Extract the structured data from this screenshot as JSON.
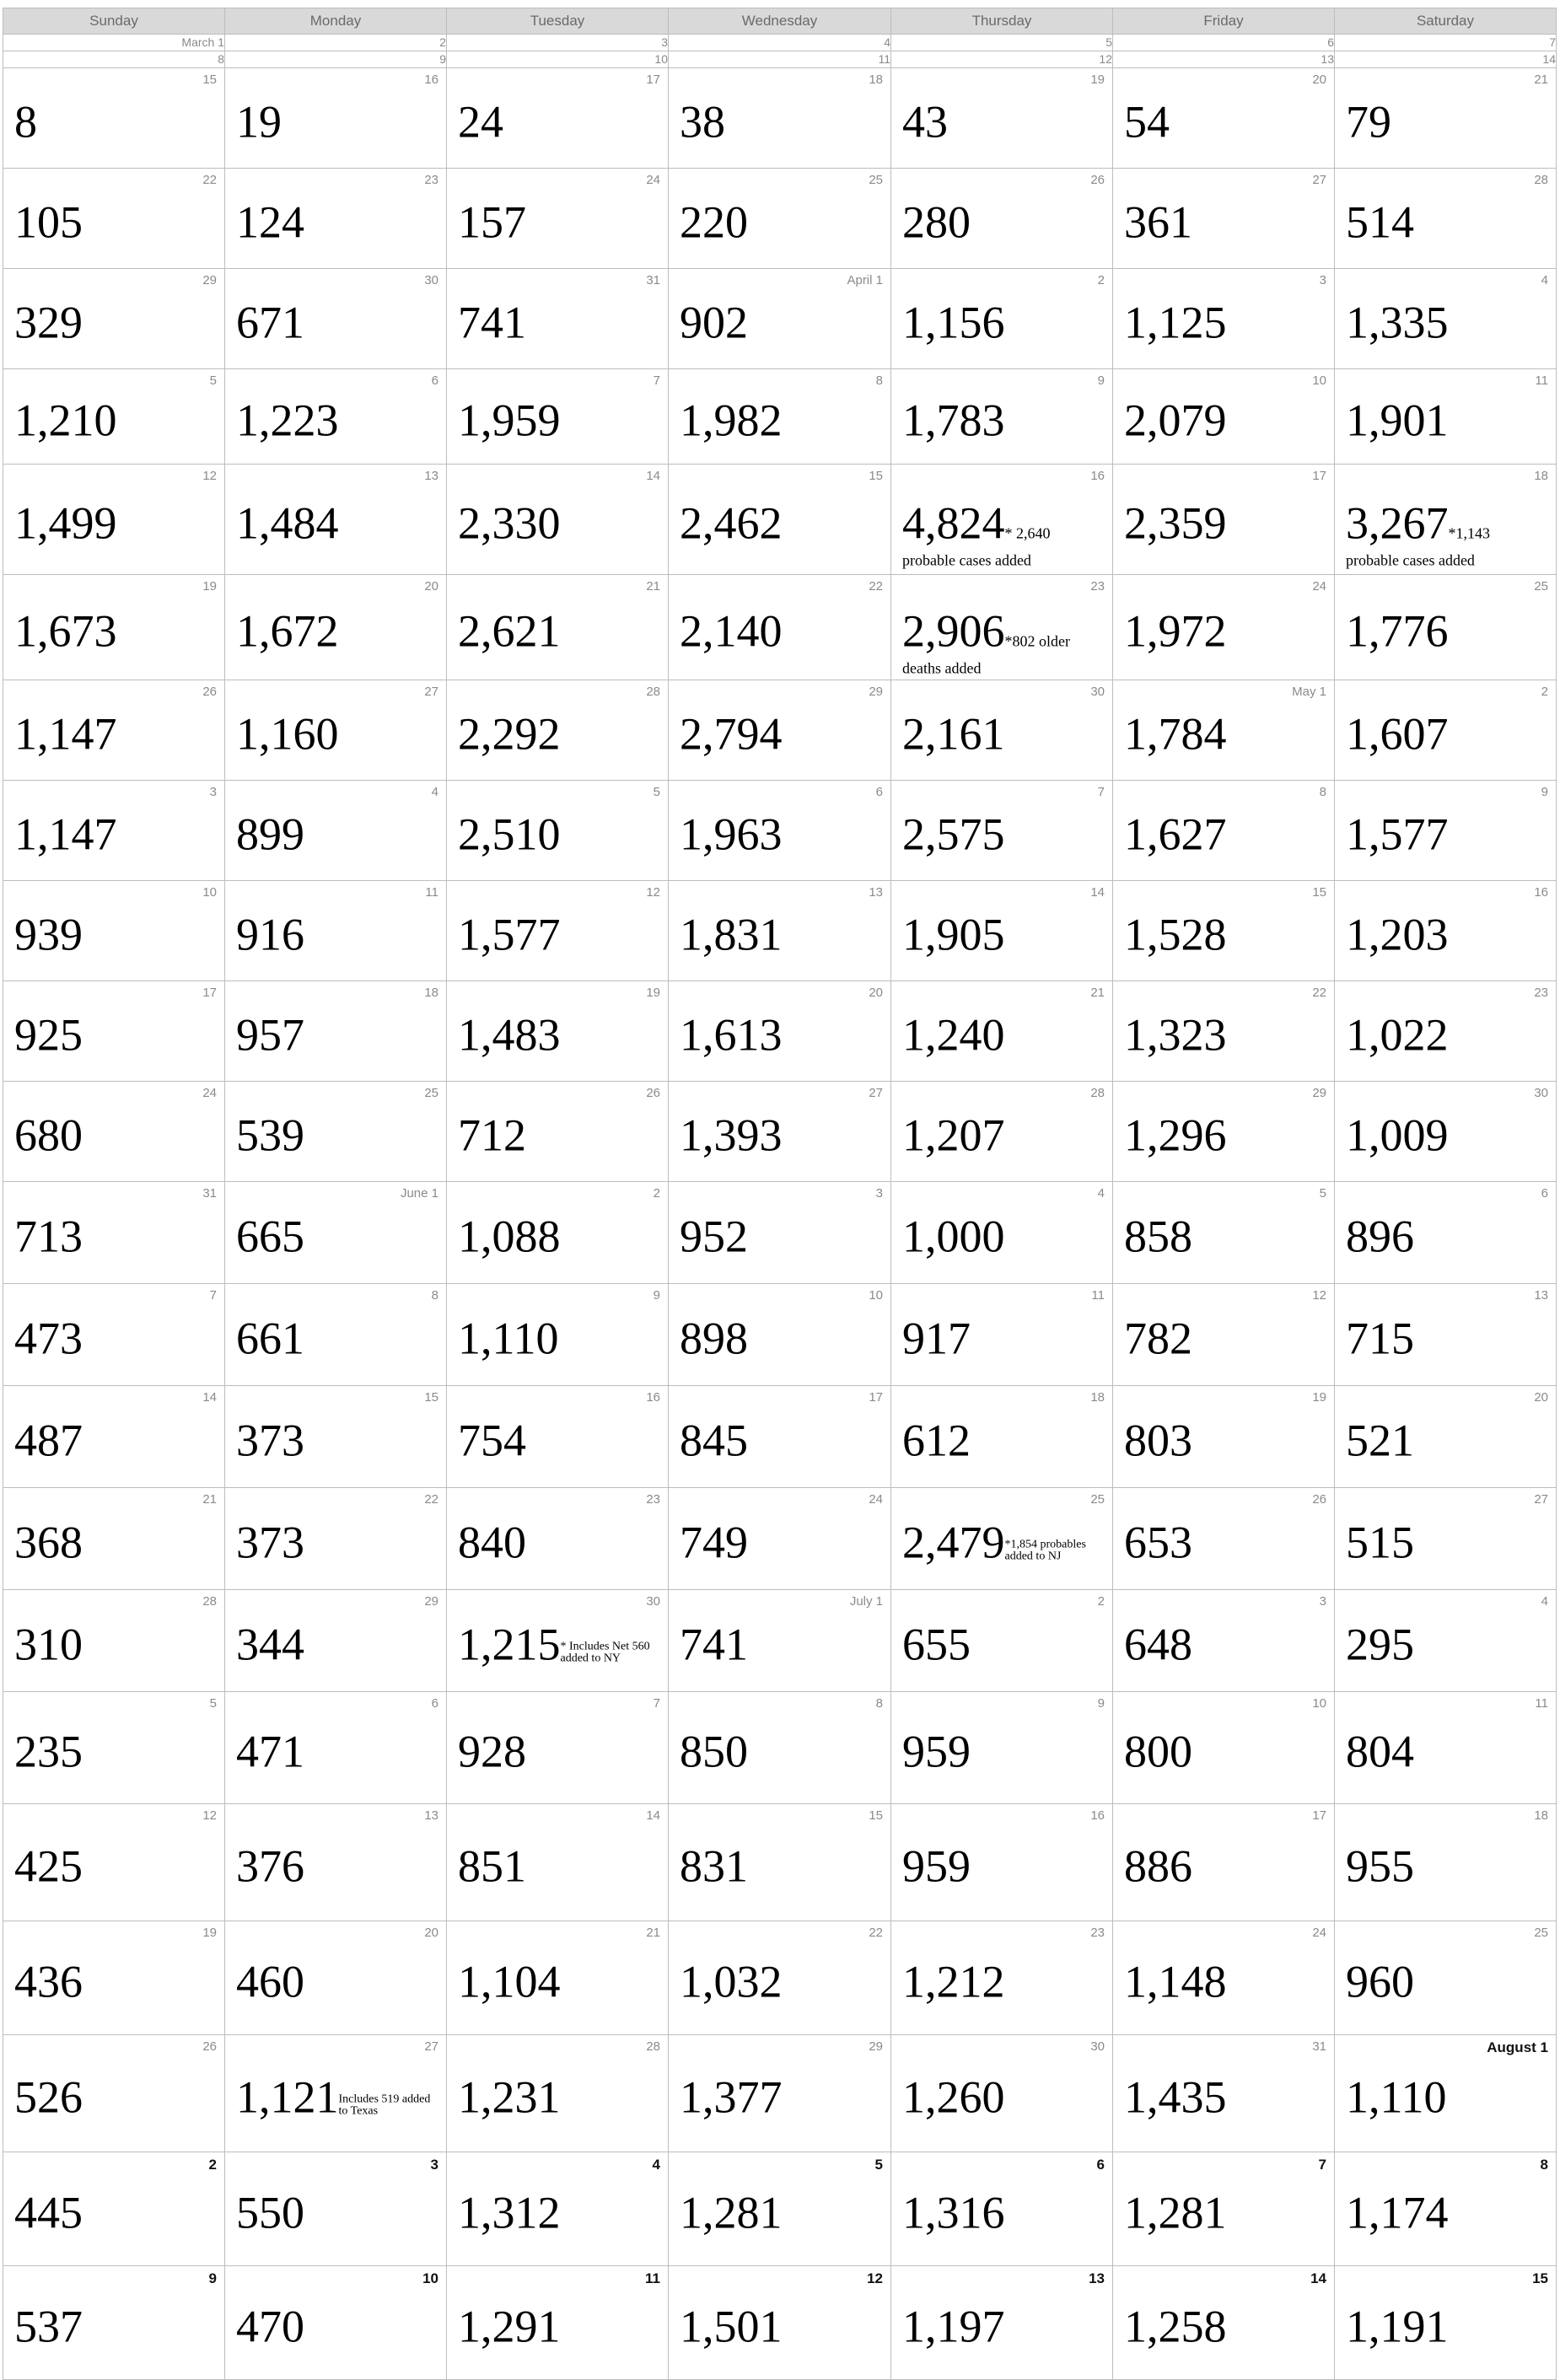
{
  "header": {
    "days": [
      "Sunday",
      "Monday",
      "Tuesday",
      "Wednesday",
      "Thursday",
      "Friday",
      "Saturday"
    ]
  },
  "mini_rows": [
    [
      "March 1",
      "2",
      "3",
      "4",
      "5",
      "6",
      "7"
    ],
    [
      "8",
      "9",
      "10",
      "11",
      "12",
      "13",
      "14"
    ]
  ],
  "weeks": [
    {
      "h": 118,
      "cells": [
        {
          "d": "15",
          "v": "8"
        },
        {
          "d": "16",
          "v": "19"
        },
        {
          "d": "17",
          "v": "24"
        },
        {
          "d": "18",
          "v": "38"
        },
        {
          "d": "19",
          "v": "43"
        },
        {
          "d": "20",
          "v": "54"
        },
        {
          "d": "21",
          "v": "79"
        }
      ]
    },
    {
      "h": 118,
      "cells": [
        {
          "d": "22",
          "v": "105"
        },
        {
          "d": "23",
          "v": "124"
        },
        {
          "d": "24",
          "v": "157"
        },
        {
          "d": "25",
          "v": "220"
        },
        {
          "d": "26",
          "v": "280"
        },
        {
          "d": "27",
          "v": "361"
        },
        {
          "d": "28",
          "v": "514"
        }
      ]
    },
    {
      "h": 118,
      "cells": [
        {
          "d": "29",
          "v": "329"
        },
        {
          "d": "30",
          "v": "671"
        },
        {
          "d": "31",
          "v": "741"
        },
        {
          "d": "April 1",
          "v": "902"
        },
        {
          "d": "2",
          "v": "1,156"
        },
        {
          "d": "3",
          "v": "1,125"
        },
        {
          "d": "4",
          "v": "1,335"
        }
      ]
    },
    {
      "h": 112,
      "cells": [
        {
          "d": "5",
          "v": "1,210"
        },
        {
          "d": "6",
          "v": "1,223"
        },
        {
          "d": "7",
          "v": "1,959"
        },
        {
          "d": "8",
          "v": "1,982"
        },
        {
          "d": "9",
          "v": "1,783"
        },
        {
          "d": "10",
          "v": "2,079"
        },
        {
          "d": "11",
          "v": "1,901"
        }
      ]
    },
    {
      "h": 130,
      "cells": [
        {
          "d": "12",
          "v": "1,499"
        },
        {
          "d": "13",
          "v": "1,484"
        },
        {
          "d": "14",
          "v": "2,330"
        },
        {
          "d": "15",
          "v": "2,462"
        },
        {
          "d": "16",
          "v": "4,824",
          "n": "* 2,640",
          "nb": "probable cases added"
        },
        {
          "d": "17",
          "v": "2,359"
        },
        {
          "d": "18",
          "v": "3,267",
          "n": "*1,143",
          "nb": "probable cases added"
        }
      ]
    },
    {
      "h": 124,
      "cells": [
        {
          "d": "19",
          "v": "1,673"
        },
        {
          "d": "20",
          "v": "1,672"
        },
        {
          "d": "21",
          "v": "2,621"
        },
        {
          "d": "22",
          "v": "2,140"
        },
        {
          "d": "23",
          "v": "2,906",
          "n": "*802 older",
          "nb": "deaths added"
        },
        {
          "d": "24",
          "v": "1,972"
        },
        {
          "d": "25",
          "v": "1,776"
        }
      ]
    },
    {
      "h": 118,
      "cells": [
        {
          "d": "26",
          "v": "1,147"
        },
        {
          "d": "27",
          "v": "1,160"
        },
        {
          "d": "28",
          "v": "2,292"
        },
        {
          "d": "29",
          "v": "2,794"
        },
        {
          "d": "30",
          "v": "2,161"
        },
        {
          "d": "May 1",
          "v": "1,784"
        },
        {
          "d": "2",
          "v": "1,607"
        }
      ]
    },
    {
      "h": 118,
      "cells": [
        {
          "d": "3",
          "v": "1,147"
        },
        {
          "d": "4",
          "v": "899"
        },
        {
          "d": "5",
          "v": "2,510"
        },
        {
          "d": "6",
          "v": "1,963"
        },
        {
          "d": "7",
          "v": "2,575"
        },
        {
          "d": "8",
          "v": "1,627"
        },
        {
          "d": "9",
          "v": "1,577"
        }
      ]
    },
    {
      "h": 118,
      "cells": [
        {
          "d": "10",
          "v": "939"
        },
        {
          "d": "11",
          "v": "916"
        },
        {
          "d": "12",
          "v": "1,577"
        },
        {
          "d": "13",
          "v": "1,831"
        },
        {
          "d": "14",
          "v": "1,905"
        },
        {
          "d": "15",
          "v": "1,528"
        },
        {
          "d": "16",
          "v": "1,203"
        }
      ]
    },
    {
      "h": 118,
      "cells": [
        {
          "d": "17",
          "v": "925"
        },
        {
          "d": "18",
          "v": "957"
        },
        {
          "d": "19",
          "v": "1,483"
        },
        {
          "d": "20",
          "v": "1,613"
        },
        {
          "d": "21",
          "v": "1,240"
        },
        {
          "d": "22",
          "v": "1,323"
        },
        {
          "d": "23",
          "v": "1,022"
        }
      ]
    },
    {
      "h": 118,
      "cells": [
        {
          "d": "24",
          "v": "680"
        },
        {
          "d": "25",
          "v": "539"
        },
        {
          "d": "26",
          "v": "712"
        },
        {
          "d": "27",
          "v": "1,393"
        },
        {
          "d": "28",
          "v": "1,207"
        },
        {
          "d": "29",
          "v": "1,296"
        },
        {
          "d": "30",
          "v": "1,009"
        }
      ]
    },
    {
      "h": 120,
      "cells": [
        {
          "d": "31",
          "v": "713"
        },
        {
          "d": "June 1",
          "v": "665"
        },
        {
          "d": "2",
          "v": "1,088"
        },
        {
          "d": "3",
          "v": "952"
        },
        {
          "d": "4",
          "v": "1,000"
        },
        {
          "d": "5",
          "v": "858"
        },
        {
          "d": "6",
          "v": "896"
        }
      ]
    },
    {
      "h": 120,
      "cells": [
        {
          "d": "7",
          "v": "473"
        },
        {
          "d": "8",
          "v": "661"
        },
        {
          "d": "9",
          "v": "1,110"
        },
        {
          "d": "10",
          "v": "898"
        },
        {
          "d": "11",
          "v": "917"
        },
        {
          "d": "12",
          "v": "782"
        },
        {
          "d": "13",
          "v": "715"
        }
      ]
    },
    {
      "h": 120,
      "cells": [
        {
          "d": "14",
          "v": "487"
        },
        {
          "d": "15",
          "v": "373"
        },
        {
          "d": "16",
          "v": "754"
        },
        {
          "d": "17",
          "v": "845"
        },
        {
          "d": "18",
          "v": "612"
        },
        {
          "d": "19",
          "v": "803"
        },
        {
          "d": "20",
          "v": "521"
        }
      ]
    },
    {
      "h": 120,
      "cells": [
        {
          "d": "21",
          "v": "368"
        },
        {
          "d": "22",
          "v": "373"
        },
        {
          "d": "23",
          "v": "840"
        },
        {
          "d": "24",
          "v": "749"
        },
        {
          "d": "25",
          "v": "2,479",
          "ns": "*1,854 probables added to NJ"
        },
        {
          "d": "26",
          "v": "653"
        },
        {
          "d": "27",
          "v": "515"
        }
      ]
    },
    {
      "h": 120,
      "cells": [
        {
          "d": "28",
          "v": "310"
        },
        {
          "d": "29",
          "v": "344"
        },
        {
          "d": "30",
          "v": "1,215",
          "ns": "* Includes Net 560 added to NY"
        },
        {
          "d": "July 1",
          "v": "741"
        },
        {
          "d": "2",
          "v": "655"
        },
        {
          "d": "3",
          "v": "648"
        },
        {
          "d": "4",
          "v": "295"
        }
      ]
    },
    {
      "h": 132,
      "cells": [
        {
          "d": "5",
          "v": "235"
        },
        {
          "d": "6",
          "v": "471"
        },
        {
          "d": "7",
          "v": "928"
        },
        {
          "d": "8",
          "v": "850"
        },
        {
          "d": "9",
          "v": "959"
        },
        {
          "d": "10",
          "v": "800"
        },
        {
          "d": "11",
          "v": "804"
        }
      ]
    },
    {
      "h": 138,
      "cells": [
        {
          "d": "12",
          "v": "425"
        },
        {
          "d": "13",
          "v": "376"
        },
        {
          "d": "14",
          "v": "851"
        },
        {
          "d": "15",
          "v": "831"
        },
        {
          "d": "16",
          "v": "959"
        },
        {
          "d": "17",
          "v": "886"
        },
        {
          "d": "18",
          "v": "955"
        }
      ]
    },
    {
      "h": 134,
      "cells": [
        {
          "d": "19",
          "v": "436"
        },
        {
          "d": "20",
          "v": "460"
        },
        {
          "d": "21",
          "v": "1,104"
        },
        {
          "d": "22",
          "v": "1,032"
        },
        {
          "d": "23",
          "v": "1,212"
        },
        {
          "d": "24",
          "v": "1,148"
        },
        {
          "d": "25",
          "v": "960"
        }
      ]
    },
    {
      "h": 138,
      "cells": [
        {
          "d": "26",
          "v": "526"
        },
        {
          "d": "27",
          "v": "1,121",
          "ns": "Includes 519 added to Texas"
        },
        {
          "d": "28",
          "v": "1,231"
        },
        {
          "d": "29",
          "v": "1,377"
        },
        {
          "d": "30",
          "v": "1,260"
        },
        {
          "d": "31",
          "v": "1,435"
        },
        {
          "d": "August 1",
          "v": "1,110",
          "dark": true
        }
      ]
    },
    {
      "h": 134,
      "cells": [
        {
          "d": "2",
          "v": "445",
          "dark": true
        },
        {
          "d": "3",
          "v": "550",
          "dark": true
        },
        {
          "d": "4",
          "v": "1,312",
          "dark": true
        },
        {
          "d": "5",
          "v": "1,281",
          "dark": true
        },
        {
          "d": "6",
          "v": "1,316",
          "dark": true
        },
        {
          "d": "7",
          "v": "1,281",
          "dark": true
        },
        {
          "d": "8",
          "v": "1,174",
          "dark": true
        }
      ]
    },
    {
      "h": 134,
      "cells": [
        {
          "d": "9",
          "v": "537",
          "dark": true
        },
        {
          "d": "10",
          "v": "470",
          "dark": true
        },
        {
          "d": "11",
          "v": "1,291",
          "dark": true
        },
        {
          "d": "12",
          "v": "1,501",
          "dark": true
        },
        {
          "d": "13",
          "v": "1,197",
          "dark": true
        },
        {
          "d": "14",
          "v": "1,258",
          "dark": true
        },
        {
          "d": "15",
          "v": "1,191",
          "dark": true
        }
      ]
    }
  ]
}
